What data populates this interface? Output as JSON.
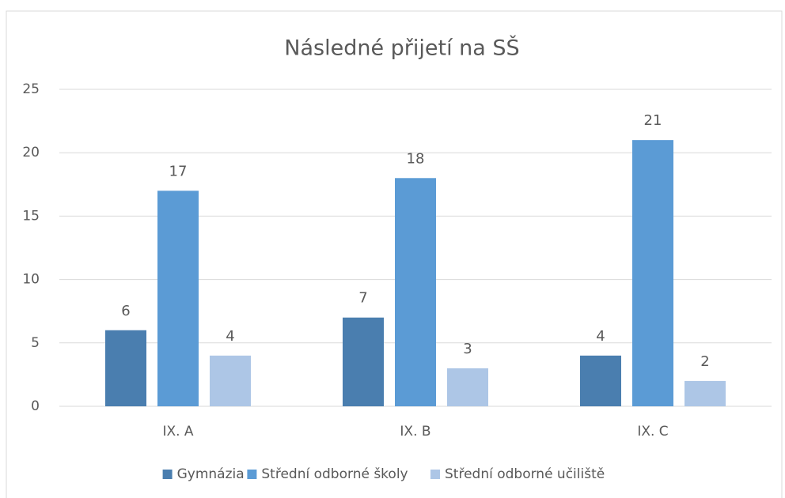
{
  "chart_data": {
    "type": "bar",
    "title": "Následné přijetí na SŠ",
    "categories": [
      "IX. A",
      "IX. B",
      "IX. C"
    ],
    "series": [
      {
        "name": "Gymnázia",
        "color": "#4a7eaf",
        "values": [
          6,
          7,
          4
        ]
      },
      {
        "name": "Střední odborné školy",
        "color": "#5b9bd5",
        "values": [
          17,
          18,
          21
        ]
      },
      {
        "name": "Střední odborné učiliště",
        "color": "#adc6e6",
        "values": [
          4,
          3,
          2
        ]
      }
    ],
    "ylim": [
      0,
      25
    ],
    "yticks": [
      0,
      5,
      10,
      15,
      20,
      25
    ],
    "grid": true,
    "legend": "bottom"
  }
}
